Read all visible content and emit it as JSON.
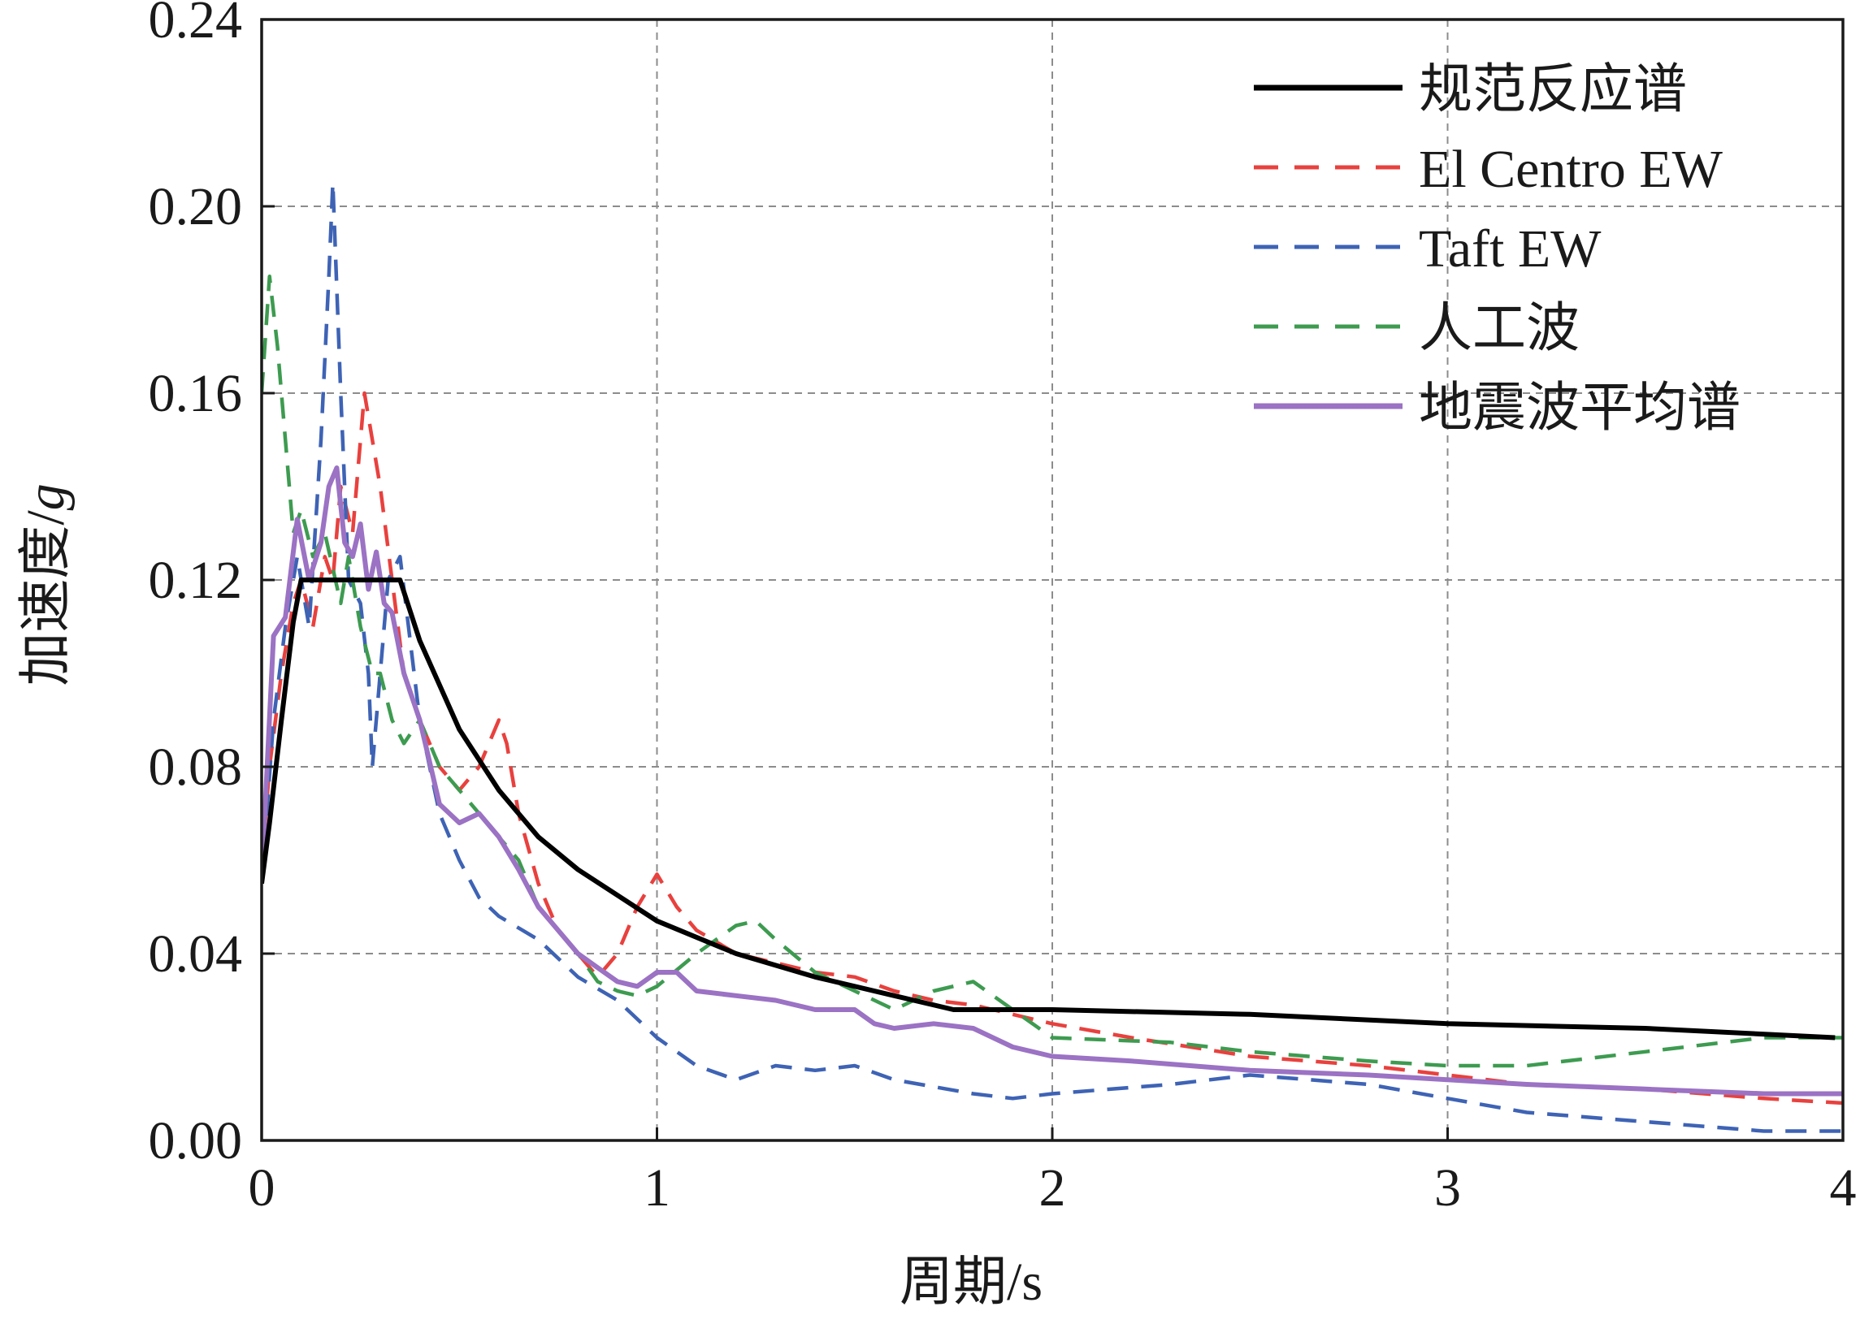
{
  "chart_data": {
    "type": "line",
    "xlabel": "周期/s",
    "ylabel_main": "加速度/",
    "ylabel_unit": "g",
    "xlim": [
      0,
      4
    ],
    "ylim": [
      0,
      0.24
    ],
    "x_ticks": [
      0,
      1,
      2,
      3,
      4
    ],
    "x_tick_labels": [
      "0",
      "1",
      "2",
      "3",
      "4"
    ],
    "y_ticks": [
      0,
      0.04,
      0.08,
      0.12,
      0.16,
      0.2,
      0.24
    ],
    "y_tick_labels": [
      "0.00",
      "0.04",
      "0.08",
      "0.12",
      "0.16",
      "0.20",
      "0.24"
    ],
    "grid": true,
    "legend_position": "top-right",
    "series": [
      {
        "name": "规范反应谱",
        "color": "#000000",
        "style": "solid",
        "x": [
          0,
          0.02,
          0.05,
          0.08,
          0.1,
          0.2,
          0.3,
          0.35,
          0.4,
          0.5,
          0.6,
          0.7,
          0.8,
          1.0,
          1.2,
          1.4,
          1.6,
          1.75,
          2.0,
          2.5,
          3.0,
          3.5,
          3.98
        ],
        "y": [
          0.055,
          0.068,
          0.09,
          0.111,
          0.12,
          0.12,
          0.12,
          0.12,
          0.107,
          0.088,
          0.075,
          0.065,
          0.058,
          0.047,
          0.04,
          0.035,
          0.031,
          0.028,
          0.028,
          0.027,
          0.025,
          0.024,
          0.022
        ]
      },
      {
        "name": "El Centro EW",
        "color": "#e8413e",
        "style": "dashed",
        "x": [
          0,
          0.02,
          0.05,
          0.08,
          0.1,
          0.13,
          0.16,
          0.18,
          0.2,
          0.23,
          0.26,
          0.28,
          0.3,
          0.33,
          0.36,
          0.4,
          0.45,
          0.5,
          0.55,
          0.6,
          0.62,
          0.65,
          0.7,
          0.75,
          0.8,
          0.85,
          0.9,
          0.95,
          1.0,
          1.05,
          1.1,
          1.2,
          1.3,
          1.4,
          1.5,
          1.6,
          1.7,
          1.8,
          2.0,
          2.2,
          2.5,
          2.8,
          3.0,
          3.2,
          3.5,
          3.8,
          4.0
        ],
        "y": [
          0.058,
          0.08,
          0.1,
          0.115,
          0.12,
          0.11,
          0.125,
          0.12,
          0.14,
          0.13,
          0.16,
          0.15,
          0.14,
          0.12,
          0.1,
          0.09,
          0.08,
          0.075,
          0.08,
          0.09,
          0.085,
          0.07,
          0.055,
          0.045,
          0.04,
          0.035,
          0.04,
          0.05,
          0.057,
          0.05,
          0.045,
          0.04,
          0.038,
          0.036,
          0.035,
          0.032,
          0.03,
          0.029,
          0.025,
          0.022,
          0.018,
          0.016,
          0.014,
          0.012,
          0.011,
          0.009,
          0.008
        ]
      },
      {
        "name": "Taft EW",
        "color": "#3e63b5",
        "style": "dashed",
        "x": [
          0,
          0.03,
          0.06,
          0.09,
          0.12,
          0.15,
          0.17,
          0.18,
          0.2,
          0.22,
          0.25,
          0.27,
          0.28,
          0.3,
          0.32,
          0.35,
          0.4,
          0.45,
          0.5,
          0.55,
          0.6,
          0.7,
          0.8,
          0.9,
          1.0,
          1.1,
          1.2,
          1.3,
          1.4,
          1.5,
          1.6,
          1.8,
          1.9,
          2.0,
          2.3,
          2.5,
          2.8,
          3.0,
          3.2,
          3.5,
          3.8,
          4.0
        ],
        "y": [
          0.055,
          0.09,
          0.11,
          0.125,
          0.11,
          0.15,
          0.185,
          0.205,
          0.16,
          0.12,
          0.115,
          0.1,
          0.08,
          0.1,
          0.12,
          0.125,
          0.09,
          0.07,
          0.06,
          0.052,
          0.048,
          0.043,
          0.035,
          0.03,
          0.022,
          0.016,
          0.013,
          0.016,
          0.015,
          0.016,
          0.013,
          0.01,
          0.009,
          0.01,
          0.012,
          0.014,
          0.012,
          0.009,
          0.006,
          0.004,
          0.002,
          0.002
        ]
      },
      {
        "name": "人工波",
        "color": "#3d9b50",
        "style": "dashed",
        "x": [
          0,
          0.02,
          0.04,
          0.06,
          0.08,
          0.1,
          0.13,
          0.16,
          0.2,
          0.22,
          0.25,
          0.28,
          0.3,
          0.33,
          0.36,
          0.4,
          0.45,
          0.5,
          0.55,
          0.6,
          0.65,
          0.7,
          0.75,
          0.8,
          0.85,
          0.9,
          0.95,
          1.0,
          1.1,
          1.2,
          1.25,
          1.3,
          1.4,
          1.5,
          1.6,
          1.7,
          1.8,
          1.9,
          2.0,
          2.3,
          2.5,
          2.8,
          3.0,
          3.2,
          3.5,
          3.8,
          4.0
        ],
        "y": [
          0.16,
          0.185,
          0.17,
          0.15,
          0.13,
          0.135,
          0.125,
          0.13,
          0.115,
          0.125,
          0.11,
          0.1,
          0.1,
          0.09,
          0.085,
          0.09,
          0.08,
          0.075,
          0.07,
          0.065,
          0.06,
          0.05,
          0.045,
          0.04,
          0.034,
          0.032,
          0.031,
          0.033,
          0.04,
          0.046,
          0.047,
          0.043,
          0.036,
          0.032,
          0.028,
          0.032,
          0.034,
          0.028,
          0.022,
          0.021,
          0.019,
          0.017,
          0.016,
          0.016,
          0.019,
          0.022,
          0.022
        ]
      },
      {
        "name": "地震波平均谱",
        "color": "#9b72c4",
        "style": "solid",
        "x": [
          0,
          0.03,
          0.06,
          0.09,
          0.12,
          0.15,
          0.17,
          0.19,
          0.21,
          0.23,
          0.25,
          0.27,
          0.29,
          0.31,
          0.33,
          0.36,
          0.4,
          0.45,
          0.5,
          0.55,
          0.6,
          0.65,
          0.7,
          0.75,
          0.8,
          0.85,
          0.9,
          0.95,
          1.0,
          1.05,
          1.1,
          1.2,
          1.3,
          1.4,
          1.5,
          1.55,
          1.6,
          1.7,
          1.8,
          1.9,
          2.0,
          2.2,
          2.5,
          2.8,
          3.0,
          3.2,
          3.5,
          3.8,
          4.0
        ],
        "y": [
          0.056,
          0.108,
          0.112,
          0.133,
          0.12,
          0.128,
          0.14,
          0.144,
          0.128,
          0.125,
          0.132,
          0.118,
          0.126,
          0.115,
          0.113,
          0.1,
          0.09,
          0.072,
          0.068,
          0.07,
          0.065,
          0.058,
          0.05,
          0.045,
          0.04,
          0.037,
          0.034,
          0.033,
          0.036,
          0.036,
          0.032,
          0.031,
          0.03,
          0.028,
          0.028,
          0.025,
          0.024,
          0.025,
          0.024,
          0.02,
          0.018,
          0.017,
          0.015,
          0.014,
          0.013,
          0.012,
          0.011,
          0.01,
          0.01
        ]
      }
    ]
  }
}
